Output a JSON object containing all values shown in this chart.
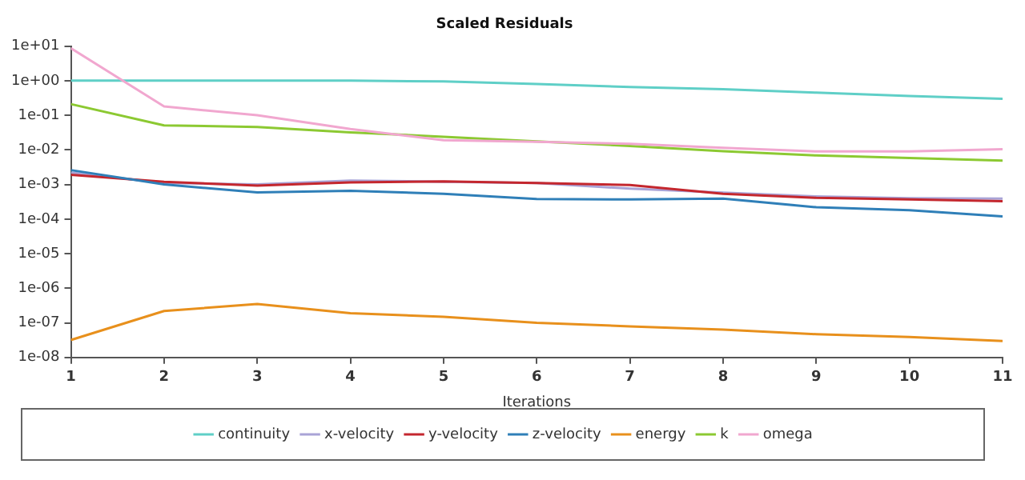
{
  "chart_data": {
    "type": "line",
    "title": "Scaled Residuals",
    "xlabel": "Iterations",
    "x": [
      1,
      2,
      3,
      4,
      5,
      6,
      7,
      8,
      9,
      10,
      11
    ],
    "xlim": [
      1,
      11
    ],
    "xticks": [
      1,
      2,
      3,
      4,
      5,
      6,
      7,
      8,
      9,
      10,
      11
    ],
    "ylim": [
      1e-08,
      10
    ],
    "log": "y",
    "yticks": [
      {
        "value": 1e-08,
        "label": "1e-08"
      },
      {
        "value": 1e-07,
        "label": "1e-07"
      },
      {
        "value": 1e-06,
        "label": "1e-06"
      },
      {
        "value": 1e-05,
        "label": "1e-05"
      },
      {
        "value": 0.0001,
        "label": "1e-04"
      },
      {
        "value": 0.001,
        "label": "1e-03"
      },
      {
        "value": 0.01,
        "label": "1e-02"
      },
      {
        "value": 0.1,
        "label": "1e-01"
      },
      {
        "value": 1,
        "label": "1e+00"
      },
      {
        "value": 10,
        "label": "1e+01"
      }
    ],
    "grid": false,
    "legend": "bottom",
    "marker": "none",
    "line_style": "solid",
    "series": [
      {
        "name": "continuity",
        "color": "#5fcfc7",
        "values": [
          1.0,
          1.0,
          1.0,
          1.0,
          0.95,
          0.8,
          0.66,
          0.57,
          0.45,
          0.36,
          0.3
        ]
      },
      {
        "name": "x-velocity",
        "color": "#a9a3d6",
        "values": [
          0.0022,
          0.0011,
          0.001,
          0.0013,
          0.0012,
          0.0011,
          0.00076,
          0.00058,
          0.00045,
          0.0004,
          0.00039
        ]
      },
      {
        "name": "y-velocity",
        "color": "#c4272e",
        "values": [
          0.0019,
          0.0012,
          0.00093,
          0.00115,
          0.00123,
          0.0011,
          0.00096,
          0.00054,
          0.00041,
          0.00037,
          0.00033
        ]
      },
      {
        "name": "z-velocity",
        "color": "#2f7fb8",
        "values": [
          0.0026,
          0.001,
          0.00059,
          0.00066,
          0.00054,
          0.00038,
          0.00037,
          0.00039,
          0.00022,
          0.00018,
          0.00012
        ]
      },
      {
        "name": "energy",
        "color": "#e8901c",
        "values": [
          3.2e-08,
          2.2e-07,
          3.5e-07,
          1.9e-07,
          1.5e-07,
          1e-07,
          7.9e-08,
          6.4e-08,
          4.7e-08,
          3.9e-08,
          3e-08
        ]
      },
      {
        "name": "k",
        "color": "#8cc932",
        "values": [
          0.21,
          0.051,
          0.046,
          0.032,
          0.024,
          0.0175,
          0.013,
          0.0091,
          0.0069,
          0.0058,
          0.0049
        ]
      },
      {
        "name": "omega",
        "color": "#f1a7cf",
        "values": [
          8.7,
          0.18,
          0.1,
          0.04,
          0.019,
          0.017,
          0.015,
          0.0115,
          0.009,
          0.009,
          0.0105
        ]
      }
    ]
  }
}
